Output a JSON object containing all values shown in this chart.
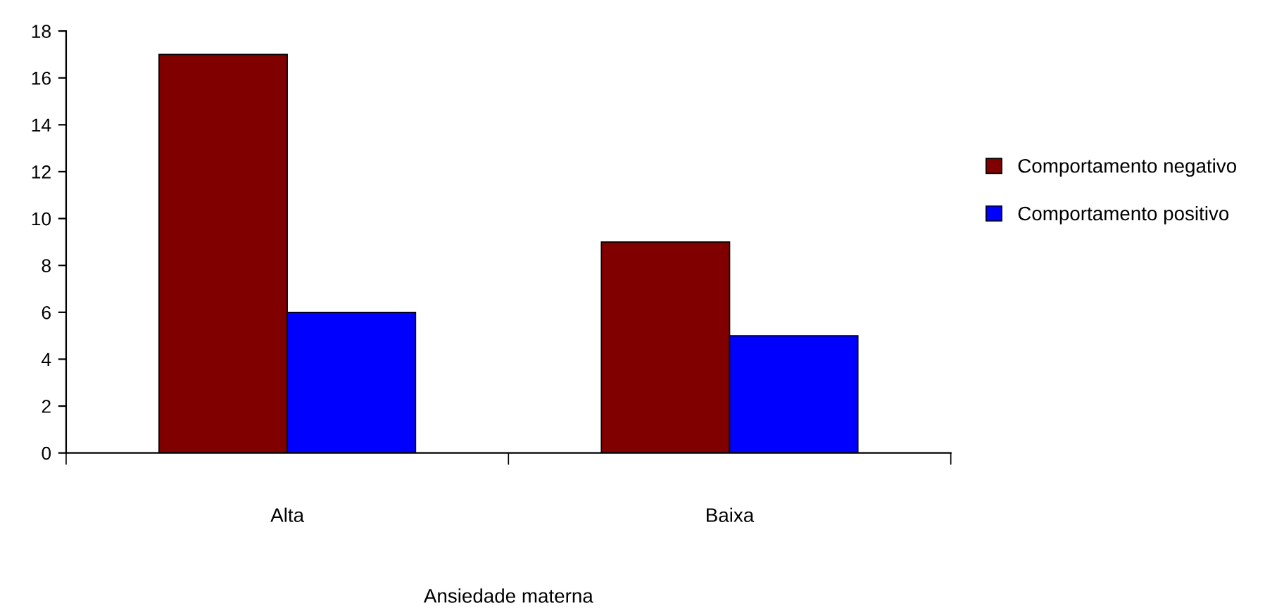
{
  "chart_data": {
    "type": "bar",
    "xlabel": "Ansiedade materna",
    "categories": [
      "Alta",
      "Baixa"
    ],
    "series": [
      {
        "name": "Comportamento negativo",
        "color": "#800000",
        "values": [
          17,
          9
        ]
      },
      {
        "name": "Comportamento positivo",
        "color": "#0000ff",
        "values": [
          6,
          5
        ]
      }
    ],
    "ylim": [
      0,
      18
    ],
    "yticks": [
      0,
      2,
      4,
      6,
      8,
      10,
      12,
      14,
      16,
      18
    ],
    "grid": false,
    "legend": "right"
  }
}
